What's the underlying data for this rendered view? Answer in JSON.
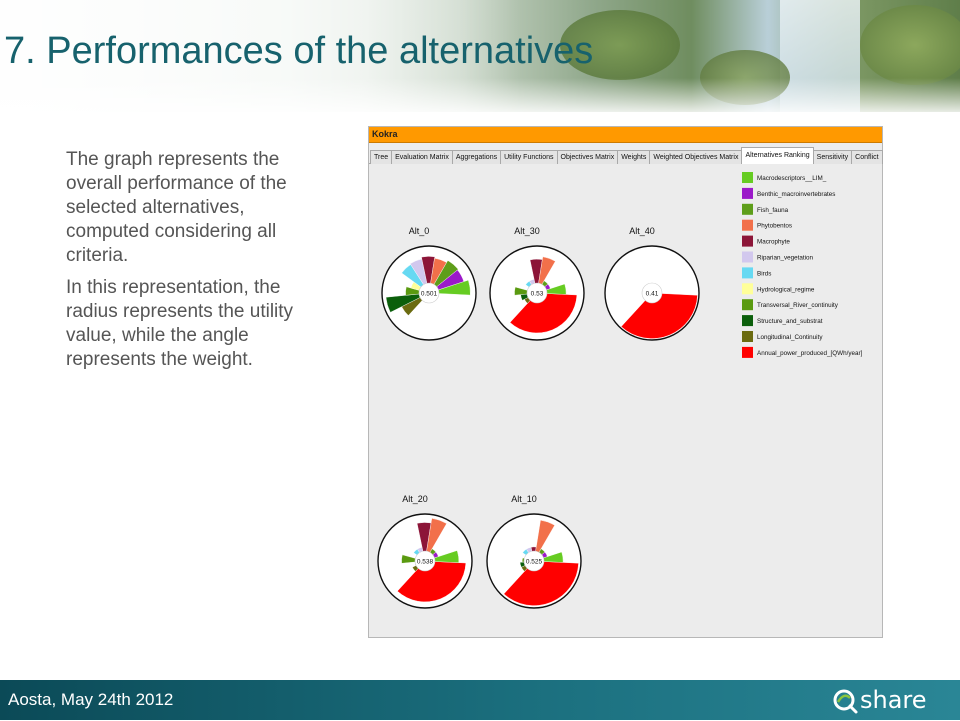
{
  "slide": {
    "title": "7. Performances of the alternatives",
    "paragraphs": [
      "The graph represents the overall performance of the selected alternatives, computed considering all criteria.",
      "In this representation, the radius represents the utility value, while the angle represents the weight."
    ],
    "footer_date": "Aosta, May 24th 2012",
    "logo_text": "share"
  },
  "app": {
    "window_title": "Kokra",
    "tabs": [
      {
        "label": "Tree",
        "active": false
      },
      {
        "label": "Evaluation Matrix",
        "active": false
      },
      {
        "label": "Aggregations",
        "active": false
      },
      {
        "label": "Utility Functions",
        "active": false
      },
      {
        "label": "Objectives Matrix",
        "active": false
      },
      {
        "label": "Weights",
        "active": false
      },
      {
        "label": "Weighted Objectives Matrix",
        "active": false
      },
      {
        "label": "Alternatives Ranking",
        "active": true
      },
      {
        "label": "Sensitivity",
        "active": false
      },
      {
        "label": "Conflict",
        "active": false
      }
    ],
    "accent_color": "#ff9900"
  },
  "chart_data": {
    "type": "pie",
    "legend_position": "top-right",
    "criteria": [
      {
        "name": "Macrodescriptors__LIM_",
        "color": "#66cc22"
      },
      {
        "name": "Benthic_macroinvertebrates",
        "color": "#9b19c9"
      },
      {
        "name": "Fish_fauna",
        "color": "#5e9e1a"
      },
      {
        "name": "Phytobentos",
        "color": "#f2704a"
      },
      {
        "name": "Macrophyte",
        "color": "#8c1538"
      },
      {
        "name": "Riparian_vegetation",
        "color": "#d2c8ee"
      },
      {
        "name": "Birds",
        "color": "#66d9f2"
      },
      {
        "name": "Hydrological_regime",
        "color": "#ffff99"
      },
      {
        "name": "Transversal_River_continuity",
        "color": "#5a9a10"
      },
      {
        "name": "Structure_and_substrat",
        "color": "#0b5f0b"
      },
      {
        "name": "Longitudinal_Continuity",
        "color": "#6b6b10"
      },
      {
        "name": "Annual_power_produced_[QWh/year]",
        "color": "#ff0000"
      }
    ],
    "alternatives": [
      {
        "name": "Alt_0",
        "score": "0.501",
        "utilities": [
          0.88,
          0.78,
          0.8,
          0.75,
          0.78,
          0.74,
          0.72,
          0.4,
          0.5,
          0.92,
          0.65,
          0.0
        ]
      },
      {
        "name": "Alt_30",
        "score": "0.53",
        "utilities": [
          0.62,
          0.3,
          0.3,
          0.78,
          0.72,
          0.3,
          0.3,
          0.2,
          0.48,
          0.35,
          0.3,
          0.85
        ]
      },
      {
        "name": "Alt_40",
        "score": "0.41",
        "utilities": [
          0.0,
          0.0,
          0.0,
          0.0,
          0.0,
          0.0,
          0.0,
          0.0,
          0.0,
          0.0,
          0.0,
          0.97
        ]
      },
      {
        "name": "Alt_20",
        "score": "0.538",
        "utilities": [
          0.72,
          0.3,
          0.3,
          0.92,
          0.82,
          0.3,
          0.3,
          0.2,
          0.5,
          0.22,
          0.3,
          0.87
        ]
      },
      {
        "name": "Alt_10",
        "score": "0.525",
        "utilities": [
          0.62,
          0.3,
          0.3,
          0.88,
          0.3,
          0.3,
          0.3,
          0.2,
          0.25,
          0.3,
          0.3,
          0.95
        ]
      }
    ]
  }
}
